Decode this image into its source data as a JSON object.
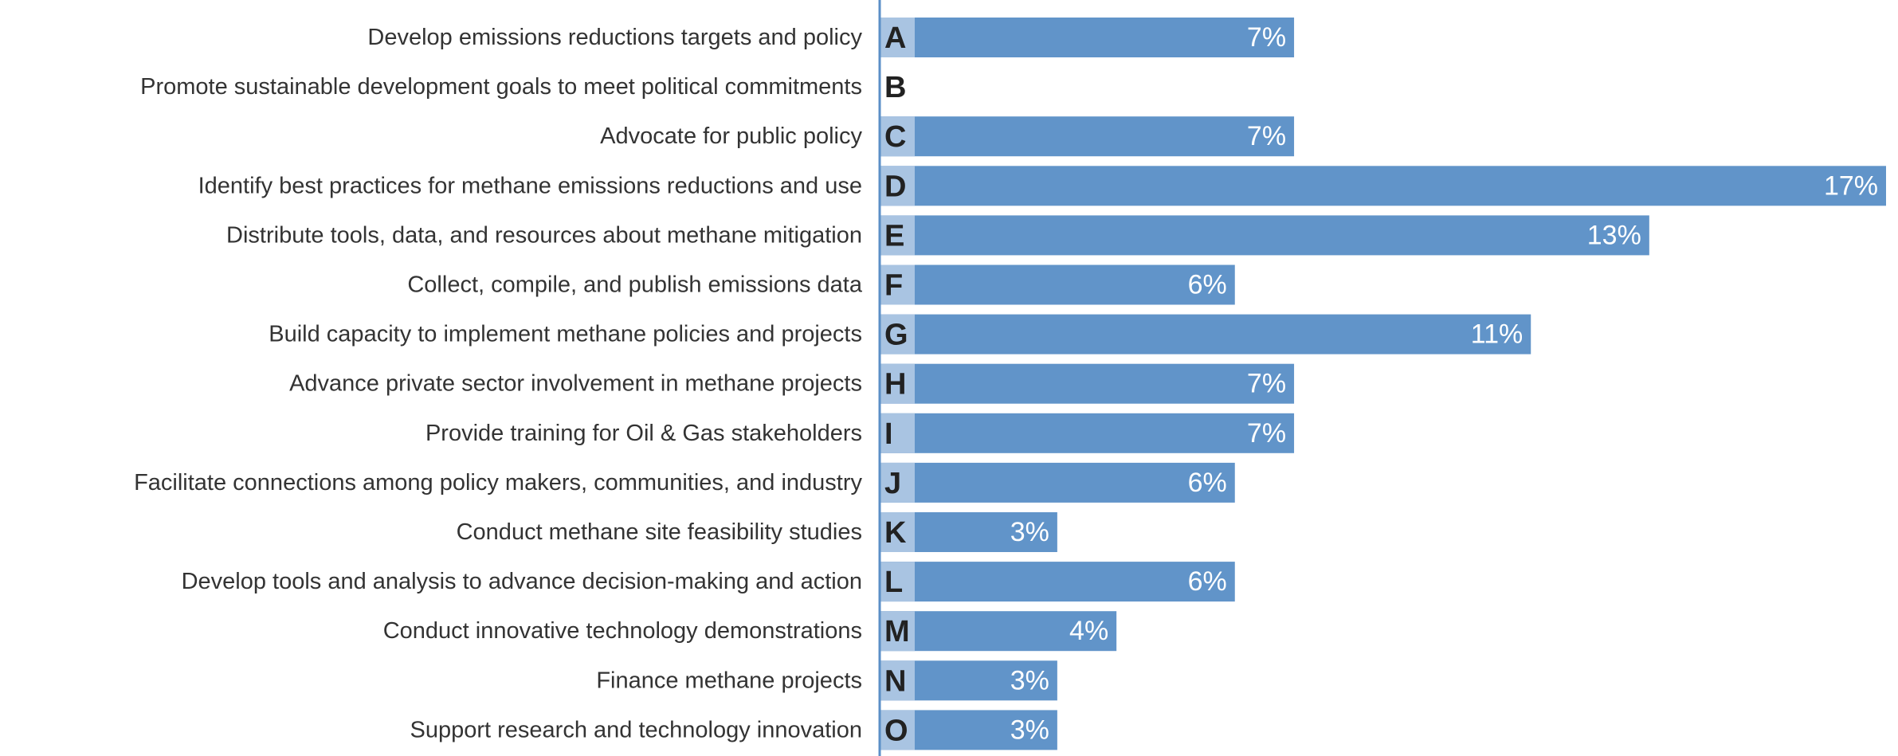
{
  "chart_data": {
    "type": "bar",
    "orientation": "horizontal",
    "color": "#6194c9",
    "categories": [
      "Develop emissions reductions targets and policy",
      "Promote sustainable development goals to meet political commitments",
      "Advocate for public policy",
      "Identify best practices for methane emissions reductions and use",
      "Distribute tools, data, and resources about methane mitigation",
      "Collect, compile, and publish emissions data",
      "Build capacity to implement methane policies and projects",
      "Advance private sector involvement in methane projects",
      "Provide training for Oil & Gas stakeholders",
      "Facilitate connections among policy makers, communities, and industry",
      "Conduct methane site feasibility studies",
      "Develop tools and analysis to advance decision-making and action",
      "Conduct innovative technology demonstrations",
      "Finance methane projects",
      "Support research and technology innovation"
    ],
    "letters": [
      "A",
      "B",
      "C",
      "D",
      "E",
      "F",
      "G",
      "H",
      "I",
      "J",
      "K",
      "L",
      "M",
      "N",
      "O"
    ],
    "values": [
      7,
      null,
      7,
      17,
      13,
      6,
      11,
      7,
      7,
      6,
      3,
      6,
      4,
      3,
      3
    ],
    "value_labels": [
      "7%",
      null,
      "7%",
      "17%",
      "13%",
      "6%",
      "11%",
      "7%",
      "7%",
      "6%",
      "3%",
      "6%",
      "4%",
      "3%",
      "3%"
    ]
  }
}
